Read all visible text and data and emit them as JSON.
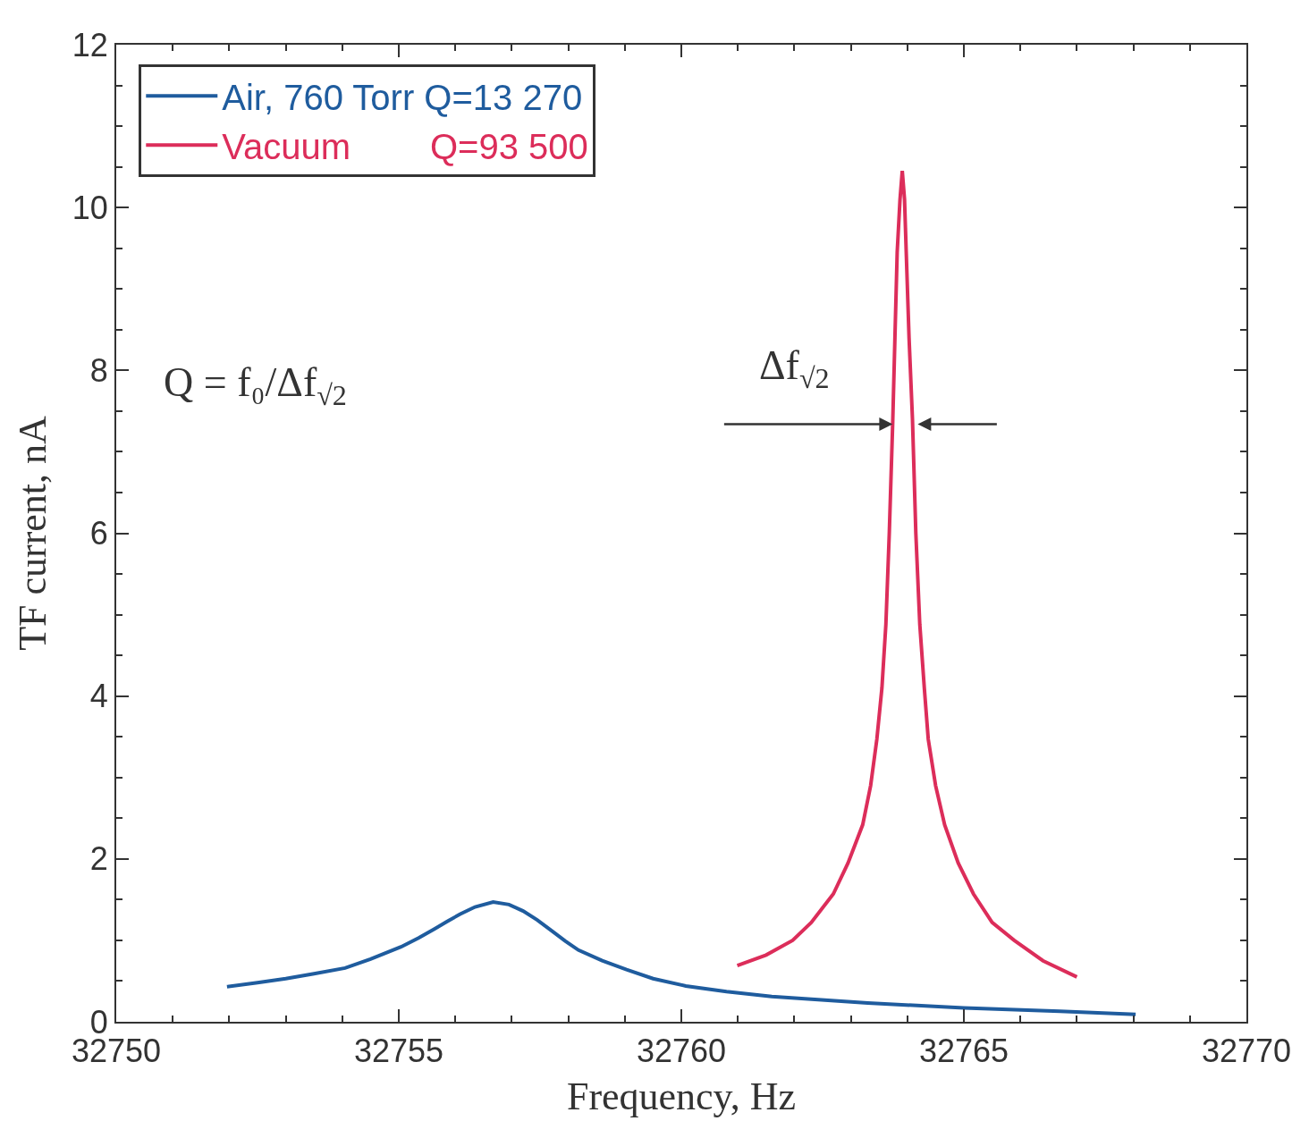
{
  "chart_data": {
    "type": "line",
    "xlabel": "Frequency, Hz",
    "ylabel": "TF current, nA",
    "xlim": [
      32750,
      32770
    ],
    "xticks": [
      32750,
      32755,
      32760,
      32765,
      32770
    ],
    "ylim": [
      0,
      12
    ],
    "yticks": [
      0,
      2,
      4,
      6,
      8,
      10,
      12
    ],
    "grid": false,
    "legend": "top left",
    "marker": "none",
    "line_style": "solid",
    "series": [
      {
        "name": "Air, 760 Torr Q=13 270",
        "color": "#1f5c9e",
        "x": [
          32751.96,
          32752.5,
          32753.0,
          32753.5,
          32754.05,
          32754.5,
          32755.04,
          32755.35,
          32755.63,
          32755.85,
          32756.08,
          32756.35,
          32756.67,
          32756.95,
          32757.2,
          32757.45,
          32757.72,
          32757.95,
          32758.18,
          32758.6,
          32759.03,
          32759.5,
          32760.08,
          32760.8,
          32761.6,
          32763.3,
          32765.0,
          32766.7,
          32768.04
        ],
        "values": [
          0.43,
          0.48,
          0.53,
          0.59,
          0.66,
          0.77,
          0.92,
          1.03,
          1.14,
          1.23,
          1.32,
          1.41,
          1.47,
          1.44,
          1.36,
          1.25,
          1.11,
          0.99,
          0.88,
          0.75,
          0.64,
          0.53,
          0.44,
          0.37,
          0.31,
          0.23,
          0.17,
          0.13,
          0.09
        ]
      },
      {
        "name": "Vacuum        Q=93 500",
        "color": "#dc2d5a",
        "x": [
          32760.99,
          32761.5,
          32761.97,
          32762.3,
          32762.69,
          32762.95,
          32763.21,
          32763.35,
          32763.46,
          32763.55,
          32763.62,
          32763.68,
          32763.74,
          32763.78,
          32763.82,
          32763.87,
          32763.91,
          32763.95,
          32763.98,
          32764.03,
          32764.09,
          32764.15,
          32764.22,
          32764.3,
          32764.37,
          32764.5,
          32764.66,
          32764.9,
          32765.17,
          32765.5,
          32765.89,
          32766.4,
          32767.0
        ],
        "values": [
          0.69,
          0.82,
          1.0,
          1.22,
          1.57,
          1.95,
          2.42,
          2.9,
          3.47,
          4.1,
          4.88,
          6.0,
          7.34,
          8.4,
          9.45,
          10.1,
          10.45,
          10.1,
          9.45,
          8.4,
          7.41,
          6.0,
          4.88,
          4.1,
          3.47,
          2.9,
          2.42,
          1.95,
          1.57,
          1.22,
          1.0,
          0.75,
          0.55
        ]
      }
    ],
    "annotations": [
      "Q = f₀/Δf$_{√2}$",
      {
        "text": "Δf$_{√2}$",
        "x": 32763.74,
        "y": 7.34
      }
    ]
  }
}
